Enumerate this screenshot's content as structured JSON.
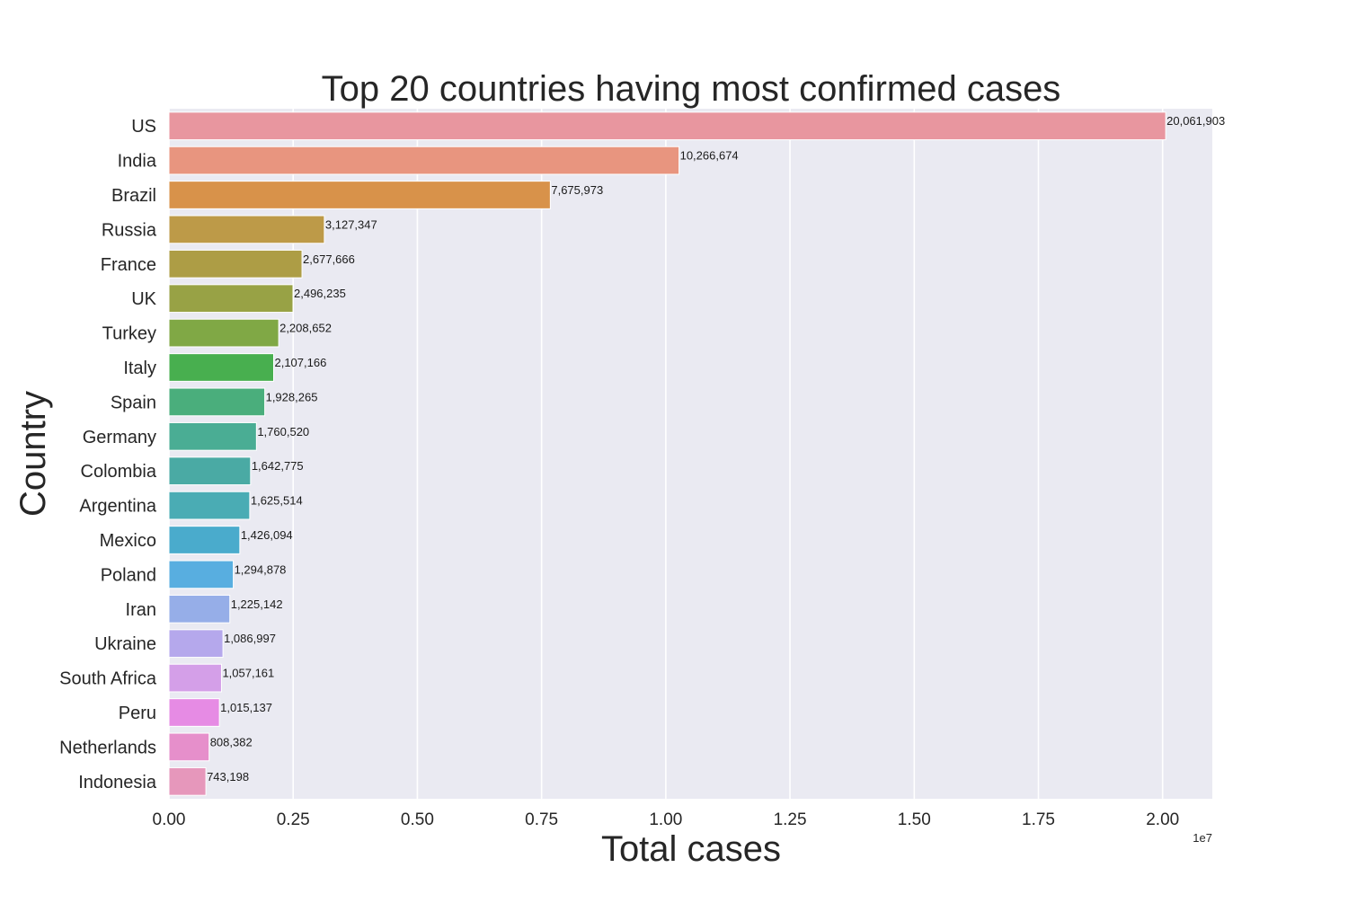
{
  "chart_data": {
    "type": "bar",
    "orientation": "horizontal",
    "title": "Top 20 countries having most confirmed cases",
    "xlabel": "Total cases",
    "ylabel": "Country",
    "x_offset_label": "1e7",
    "xlim": [
      0,
      21000000
    ],
    "xticks": [
      0,
      2500000,
      5000000,
      7500000,
      10000000,
      12500000,
      15000000,
      17500000,
      20000000
    ],
    "xtick_labels": [
      "0.00",
      "0.25",
      "0.50",
      "0.75",
      "1.00",
      "1.25",
      "1.50",
      "1.75",
      "2.00"
    ],
    "grid": true,
    "categories": [
      "US",
      "India",
      "Brazil",
      "Russia",
      "France",
      "UK",
      "Turkey",
      "Italy",
      "Spain",
      "Germany",
      "Colombia",
      "Argentina",
      "Mexico",
      "Poland",
      "Iran",
      "Ukraine",
      "South Africa",
      "Peru",
      "Netherlands",
      "Indonesia"
    ],
    "values": [
      20061903,
      10266674,
      7675973,
      3127347,
      2677666,
      2496235,
      2208652,
      2107166,
      1928265,
      1760520,
      1642775,
      1625514,
      1426094,
      1294878,
      1225142,
      1086997,
      1057161,
      1015137,
      808382,
      743198
    ],
    "value_labels": [
      "20,061,903",
      "10,266,674",
      "7,675,973",
      "3,127,347",
      "2,677,666",
      "2,496,235",
      "2,208,652",
      "2,107,166",
      "1,928,265",
      "1,760,520",
      "1,642,775",
      "1,625,514",
      "1,426,094",
      "1,294,878",
      "1,225,142",
      "1,086,997",
      "1,057,161",
      "1,015,137",
      "808,382",
      "743,198"
    ],
    "colors": [
      "#e8969f",
      "#e8957f",
      "#d8924a",
      "#bd9a48",
      "#ad9d45",
      "#98a245",
      "#80a845",
      "#48af4f",
      "#4aae7c",
      "#4aad94",
      "#4aaaa4",
      "#4aacb4",
      "#4aabcc",
      "#58aee0",
      "#96aee8",
      "#b5a8ec",
      "#d49fe8",
      "#e68be4",
      "#e68fcb",
      "#e697bb"
    ]
  }
}
